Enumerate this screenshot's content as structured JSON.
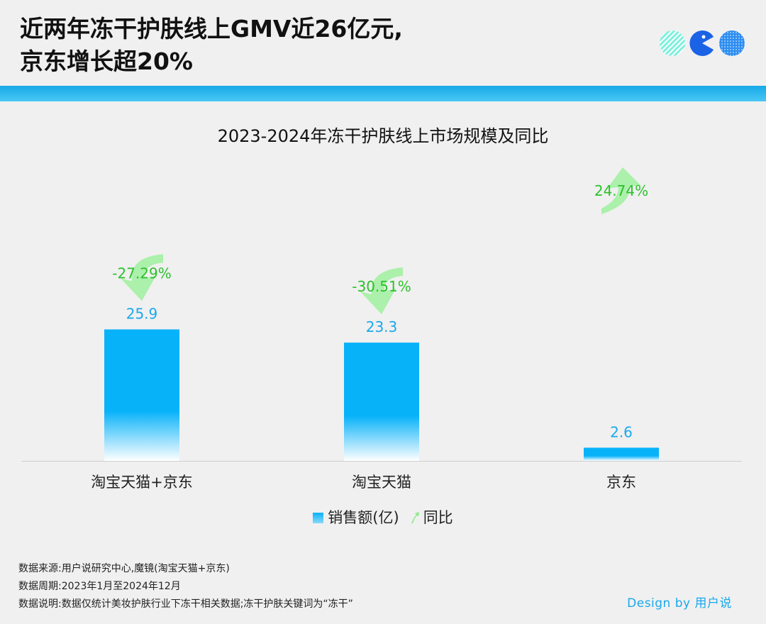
{
  "header": {
    "title_line1": "近两年冻干护肤线上GMV近26亿元,",
    "title_line2": "京东增长超20%"
  },
  "colors": {
    "accent": "#19a8ec",
    "bar": "#09b2f9",
    "yoy_positive": "#2bc22b",
    "yoy_arrow": "#a3f0a3",
    "band": "#18a9e8"
  },
  "chart_data": {
    "type": "bar",
    "title": "2023-2024年冻干护肤线上市场规模及同比",
    "categories": [
      "淘宝天猫+京东",
      "淘宝天猫",
      "京东"
    ],
    "series": [
      {
        "name": "销售额(亿)",
        "values": [
          25.9,
          23.3,
          2.6
        ],
        "value_labels": [
          "25.9",
          "23.3",
          "2.6"
        ]
      },
      {
        "name": "同比",
        "values": [
          -27.29,
          -30.51,
          24.74
        ],
        "value_labels": [
          "-27.29%",
          "-30.51%",
          "24.74%"
        ]
      }
    ],
    "ylim": [
      0,
      30
    ],
    "grid": false,
    "legend_position": "bottom-center"
  },
  "legend": {
    "sales_label": "销售额(亿)",
    "yoy_label": "同比"
  },
  "notes": {
    "source": "数据来源:用户说研究中心,魔镜(淘宝天猫+京东)",
    "period": "数据周期:2023年1月至2024年12月",
    "description": "数据说明:数据仅统计美妆护肤行业下冻干相关数据;冻干护肤关键词为“冻干”"
  },
  "credit": "Design by 用户说"
}
